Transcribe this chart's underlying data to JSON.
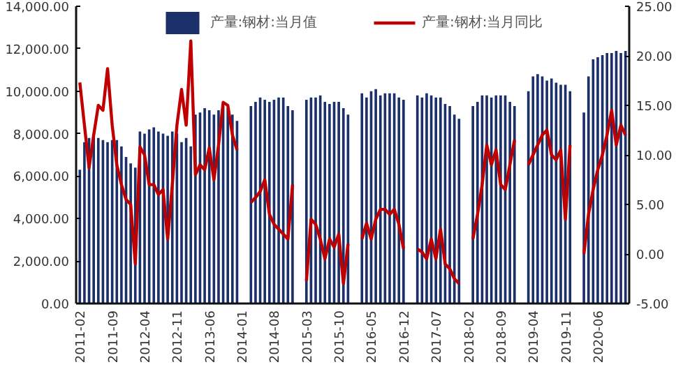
{
  "chart_data": {
    "type": "bar",
    "categories": [
      "2011-02",
      null,
      null,
      null,
      null,
      null,
      null,
      "2011-09",
      null,
      null,
      null,
      null,
      null,
      null,
      "2012-04",
      null,
      null,
      null,
      null,
      null,
      null,
      "2012-11",
      null,
      null,
      null,
      null,
      null,
      null,
      "2013-06",
      null,
      null,
      null,
      null,
      null,
      null,
      "2014-01",
      null,
      null,
      null,
      null,
      null,
      null,
      "2014-08",
      null,
      null,
      null,
      null,
      null,
      null,
      "2015-03",
      null,
      null,
      null,
      null,
      null,
      null,
      "2015-10",
      null,
      null,
      null,
      null,
      null,
      null,
      "2016-05",
      null,
      null,
      null,
      null,
      null,
      null,
      "2016-12",
      null,
      null,
      null,
      null,
      null,
      null,
      "2017-07",
      null,
      null,
      null,
      null,
      null,
      null,
      "2018-02",
      null,
      null,
      null,
      null,
      null,
      null,
      "2018-09",
      null,
      null,
      null,
      null,
      null,
      null,
      "2019-04",
      null,
      null,
      null,
      null,
      null,
      null,
      "2019-11",
      null,
      null,
      null,
      null,
      null,
      null,
      "2020-06",
      null,
      null,
      null,
      null,
      null,
      null
    ],
    "series": [
      {
        "name": "产量:钢材:当月值",
        "color": "#1b2f6b",
        "values": [
          6300,
          7600,
          7800,
          7900,
          7800,
          7700,
          7600,
          7700,
          7700,
          7400,
          6900,
          6600,
          6400,
          8100,
          8000,
          8200,
          8300,
          8100,
          8000,
          7900,
          8100,
          8000,
          7600,
          7800,
          7400,
          8900,
          9000,
          9200,
          9100,
          8900,
          9100,
          9300,
          9200,
          8900,
          8600,
          null,
          null,
          9300,
          9500,
          9700,
          9600,
          9500,
          9600,
          9700,
          9700,
          9300,
          9100,
          null,
          null,
          9600,
          9700,
          9700,
          9800,
          9500,
          9400,
          9500,
          9500,
          9200,
          8900,
          null,
          null,
          9900,
          9700,
          10000,
          10100,
          9800,
          9900,
          9900,
          9900,
          9700,
          9600,
          null,
          null,
          9800,
          9700,
          9900,
          9800,
          9700,
          9700,
          9400,
          9300,
          8900,
          8700,
          null,
          null,
          9300,
          9500,
          9800,
          9800,
          9700,
          9800,
          9800,
          9800,
          9500,
          9300,
          null,
          null,
          10000,
          10700,
          10800,
          10700,
          10500,
          10600,
          10400,
          10300,
          10300,
          10000,
          null,
          null,
          9000,
          10700,
          11500,
          11600,
          11700,
          11800,
          11800,
          11900,
          11800,
          11900
        ]
      },
      {
        "name": "产量:钢材:当月同比",
        "type": "line",
        "axis": "y2",
        "color": "#c00000",
        "values": [
          17.3,
          13,
          8.7,
          12,
          15,
          14.5,
          18.7,
          13,
          9,
          7,
          5.5,
          5,
          -1,
          10.8,
          10,
          7,
          7,
          6,
          6.5,
          1.5,
          7,
          13,
          16.6,
          13,
          21.5,
          8,
          9,
          8.5,
          10.7,
          7.5,
          11,
          15.3,
          15,
          12,
          10.5,
          null,
          null,
          5.2,
          5.7,
          6.3,
          7.5,
          4,
          3,
          2.5,
          2,
          1.5,
          7,
          null,
          null,
          -2.7,
          3.5,
          3,
          1.5,
          -0.5,
          1.5,
          0.7,
          2,
          -3,
          1,
          null,
          null,
          1.5,
          3.1,
          1.5,
          3.5,
          4.5,
          4.5,
          4,
          4.5,
          3,
          0.5,
          null,
          null,
          0.5,
          0.2,
          -0.5,
          1.5,
          -0.5,
          2.5,
          -1,
          -1.5,
          -2.5,
          -3,
          null,
          null,
          1.5,
          4,
          7,
          11,
          9,
          10.5,
          7,
          6.5,
          9,
          11.5,
          null,
          null,
          9,
          10,
          11,
          12,
          12.5,
          10,
          9.5,
          10.5,
          3.5,
          11,
          null,
          null,
          0,
          4,
          6.5,
          8.5,
          10,
          12,
          14.5,
          11,
          13,
          12
        ]
      }
    ],
    "ylim": [
      0,
      14000
    ],
    "yticks": [
      {
        "value": 0,
        "label": "0.00"
      },
      {
        "value": 2000,
        "label": "2,000.00"
      },
      {
        "value": 4000,
        "label": "4,000.00"
      },
      {
        "value": 6000,
        "label": "6,000.00"
      },
      {
        "value": 8000,
        "label": "8,000.00"
      },
      {
        "value": 10000,
        "label": "10,000.00"
      },
      {
        "value": 12000,
        "label": "12,000.00"
      },
      {
        "value": 14000,
        "label": "14,000.00"
      }
    ],
    "y2lim": [
      -5,
      25
    ],
    "y2ticks": [
      {
        "value": -5,
        "label": "-5.00"
      },
      {
        "value": 0,
        "label": "0.00"
      },
      {
        "value": 5,
        "label": "5.00"
      },
      {
        "value": 10,
        "label": "10.00"
      },
      {
        "value": 15,
        "label": "15.00"
      },
      {
        "value": 20,
        "label": "20.00"
      },
      {
        "value": 25,
        "label": "25.00"
      }
    ],
    "grid": false,
    "legend": "top"
  }
}
